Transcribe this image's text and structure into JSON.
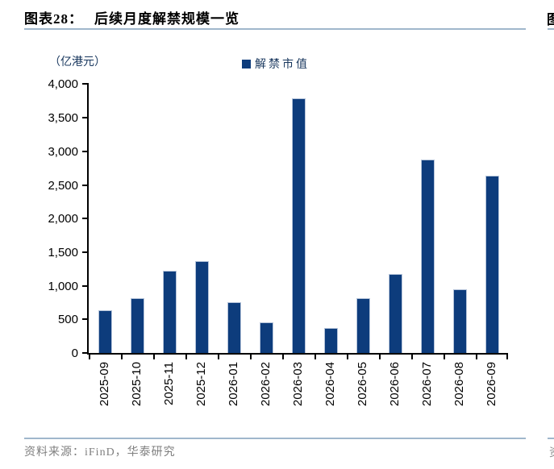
{
  "page": {
    "figure_label": "图表28：",
    "figure_title": "后续月度解禁规模一览",
    "source_text": "资料来源：iFinD，华泰研究",
    "next_column_top_fragment": "图",
    "next_column_bottom_fragment": "资"
  },
  "chart_data": {
    "type": "bar",
    "title": "后续月度解禁规模一览",
    "unit_label": "（亿港元）",
    "legend": [
      {
        "label": "解禁市值",
        "color": "#0d3c7c"
      }
    ],
    "legend_position": "top-center",
    "categories": [
      "2025-09",
      "2025-10",
      "2025-11",
      "2025-12",
      "2026-01",
      "2026-02",
      "2026-03",
      "2026-04",
      "2026-05",
      "2026-06",
      "2026-07",
      "2026-08",
      "2026-09"
    ],
    "series": [
      {
        "name": "解禁市值",
        "values": [
          630,
          810,
          1220,
          1370,
          750,
          460,
          3790,
          370,
          810,
          1170,
          2880,
          950,
          2640
        ]
      }
    ],
    "ylim": [
      0,
      4000
    ],
    "ytick_interval": 500,
    "ytick_labels": [
      "0",
      "500",
      "1,000",
      "1,500",
      "2,000",
      "2,500",
      "3,000",
      "3,500",
      "4,000"
    ],
    "grid": false,
    "bar_color": "#0d3c7c",
    "bar_border_color": "#b5c4da",
    "axis_color": "#000000"
  },
  "colors": {
    "divider": "#a0b7cc",
    "source_text": "#7f7f7f",
    "label_text": "#17365d"
  }
}
